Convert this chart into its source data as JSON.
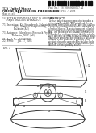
{
  "page_bg": "#ffffff",
  "barcode_color": "#111111",
  "text_color": "#333333",
  "line_color": "#444444",
  "diagram_line": "#555555",
  "header": {
    "left1": "(12) United States",
    "left2": "Patent Application Publication",
    "left3": "Mao et al.",
    "right1": "Pub. No.:  US 2008/0030567 A1",
    "right2": "Pub. Date:  Feb. 7, 2008"
  },
  "left_col": [
    "(54) ROTARY PRINTHEAD DISC IN A ROTARY",
    "      INKJET IMAGING APPARATUS",
    "",
    "(75) Inventors:  Kia Silverbrook, Balmain",
    "                 (AU); Samuel George Malloy,",
    "                 Balmain (AU)",
    "",
    "(73) Assignee: Silverbrook Research Pty Ltd,",
    "               Balmain, NSW (AU)",
    "",
    "(21) Appl. No.: 11/460,365",
    "(22) Filed:      Jul. 27, 2006"
  ],
  "abstract_title": "ABSTRACT",
  "abstract_body": [
    "A rotary inkjet imaging apparatus includes a",
    "rotary printhead disc. The printhead disc is",
    "mounted for rotation about a disc axis and has",
    "a plurality of ink ejection nozzles arranged on",
    "a surface thereof. A media transport assembly",
    "moves print media past the rotating printhead",
    "disc. The printhead disc and media transport",
    "assembly are configured such that the nozzles",
    "eject ink onto the print media to form an image.",
    "The rotary printhead disc includes a disc body",
    "defining a disc plane and a plurality of ink",
    "ejection elements supported by the disc body.",
    "Each ink ejection element is operable to eject",
    "ink from a corresponding nozzle."
  ],
  "fig_label": "FIG. 1"
}
